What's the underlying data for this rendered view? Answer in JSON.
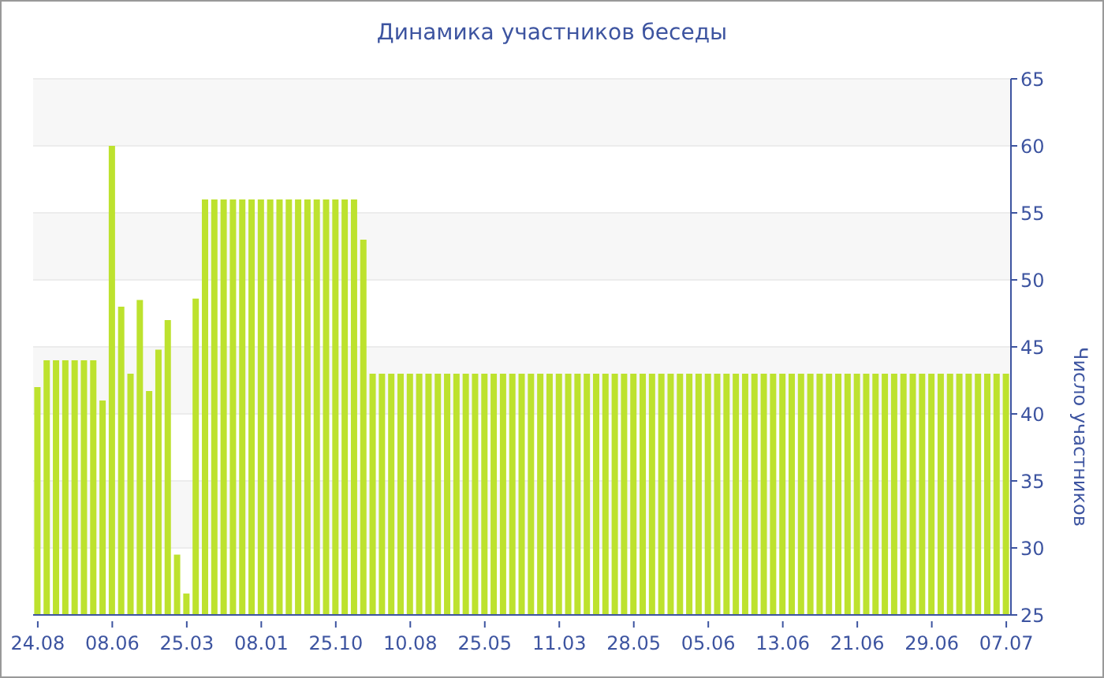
{
  "chart_data": {
    "type": "bar",
    "title": "Динамика участников беседы",
    "ylabel": "Число участников",
    "categories": [
      "24.08",
      null,
      null,
      null,
      null,
      null,
      null,
      null,
      "08.06",
      null,
      null,
      null,
      null,
      null,
      null,
      null,
      "25.03",
      null,
      null,
      null,
      null,
      null,
      null,
      null,
      "08.01",
      null,
      null,
      null,
      null,
      null,
      null,
      null,
      "25.10",
      null,
      null,
      null,
      null,
      null,
      null,
      null,
      "10.08",
      null,
      null,
      null,
      null,
      null,
      null,
      null,
      "25.05",
      null,
      null,
      null,
      null,
      null,
      null,
      null,
      "11.03",
      null,
      null,
      null,
      null,
      null,
      null,
      null,
      "28.05",
      null,
      null,
      null,
      null,
      null,
      null,
      null,
      "05.06",
      null,
      null,
      null,
      null,
      null,
      null,
      null,
      "13.06",
      null,
      null,
      null,
      null,
      null,
      null,
      null,
      "21.06",
      null,
      null,
      null,
      null,
      null,
      null,
      null,
      "29.06",
      null,
      null,
      null,
      null,
      null,
      null,
      null,
      "07.07"
    ],
    "values": [
      42,
      44,
      44,
      44,
      44,
      44,
      44,
      41,
      60,
      48,
      43,
      48.5,
      41.7,
      44.8,
      47,
      29.5,
      26.6,
      48.6,
      56,
      56,
      56,
      56,
      56,
      56,
      56,
      56,
      56,
      56,
      56,
      56,
      56,
      56,
      56,
      56,
      56,
      53,
      43,
      43,
      43,
      43,
      43,
      43,
      43,
      43,
      43,
      43,
      43,
      43,
      43,
      43,
      43,
      43,
      43,
      43,
      43,
      43,
      43,
      43,
      43,
      43,
      43,
      43,
      43,
      43,
      43,
      43,
      43,
      43,
      43,
      43,
      43,
      43,
      43,
      43,
      43,
      43,
      43,
      43,
      43,
      43,
      43,
      43,
      43,
      43,
      43,
      43,
      43,
      43,
      43,
      43,
      43,
      43,
      43,
      43,
      43,
      43,
      43,
      43,
      43,
      43,
      43,
      43,
      43,
      43,
      43
    ],
    "color": "#bde22e",
    "ylim": [
      25,
      65
    ],
    "yticks": [
      25,
      30,
      35,
      40,
      45,
      50,
      55,
      60,
      65
    ],
    "grid": "y"
  }
}
